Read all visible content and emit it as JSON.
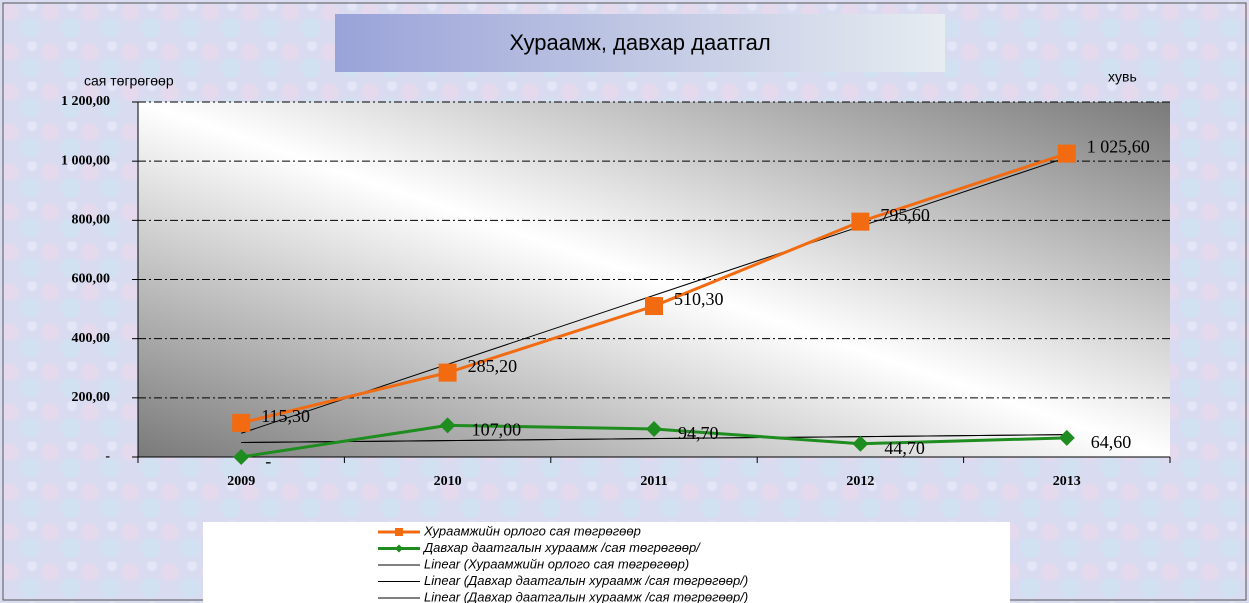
{
  "chart_data": {
    "type": "line",
    "title": "Хураамж,  давхар даатгал",
    "y_label": "сая төгрөгөөр",
    "y2_label": "хувь",
    "categories": [
      "2009",
      "2010",
      "2011",
      "2012",
      "2013"
    ],
    "series": [
      {
        "name": "Хураамжийн орлого сая төгрөгөөр",
        "color": "#f26b10",
        "marker": "square",
        "values": [
          115.3,
          285.2,
          510.3,
          795.6,
          1025.6
        ],
        "value_labels": [
          "115,30",
          "285,20",
          "510,30",
          "795,60",
          "1 025,60"
        ]
      },
      {
        "name": "Давхар даатгалын хураамж /сая төгрөгөөр/",
        "color": "#1e8c1e",
        "marker": "diamond",
        "values": [
          0,
          107.0,
          94.7,
          44.7,
          64.6
        ],
        "value_labels": [
          "-",
          "107,00",
          "94,70",
          "44,70",
          "64,60"
        ]
      }
    ],
    "trendlines": [
      {
        "name": "Linear (Хураамжийн орлого сая төгрөгөөр)",
        "series": 0,
        "color": "#000000"
      },
      {
        "name": "Linear (Давхар даатгалын хураамж /сая төгрөгөөр/)",
        "series": 1,
        "color": "#000000"
      },
      {
        "name": "Linear (Давхар даатгалын хураамж /сая төгрөгөөр/)",
        "series": 1,
        "color": "#000000"
      }
    ],
    "ylim": [
      0,
      1200
    ],
    "yticks": [
      {
        "value": 0,
        "label": "-"
      },
      {
        "value": 200,
        "label": "200,00"
      },
      {
        "value": 400,
        "label": "400,00"
      },
      {
        "value": 600,
        "label": "600,00"
      },
      {
        "value": 800,
        "label": "800,00"
      },
      {
        "value": 1000,
        "label": "1 000,00"
      },
      {
        "value": 1200,
        "label": "1 200,00"
      }
    ],
    "grid": true
  }
}
